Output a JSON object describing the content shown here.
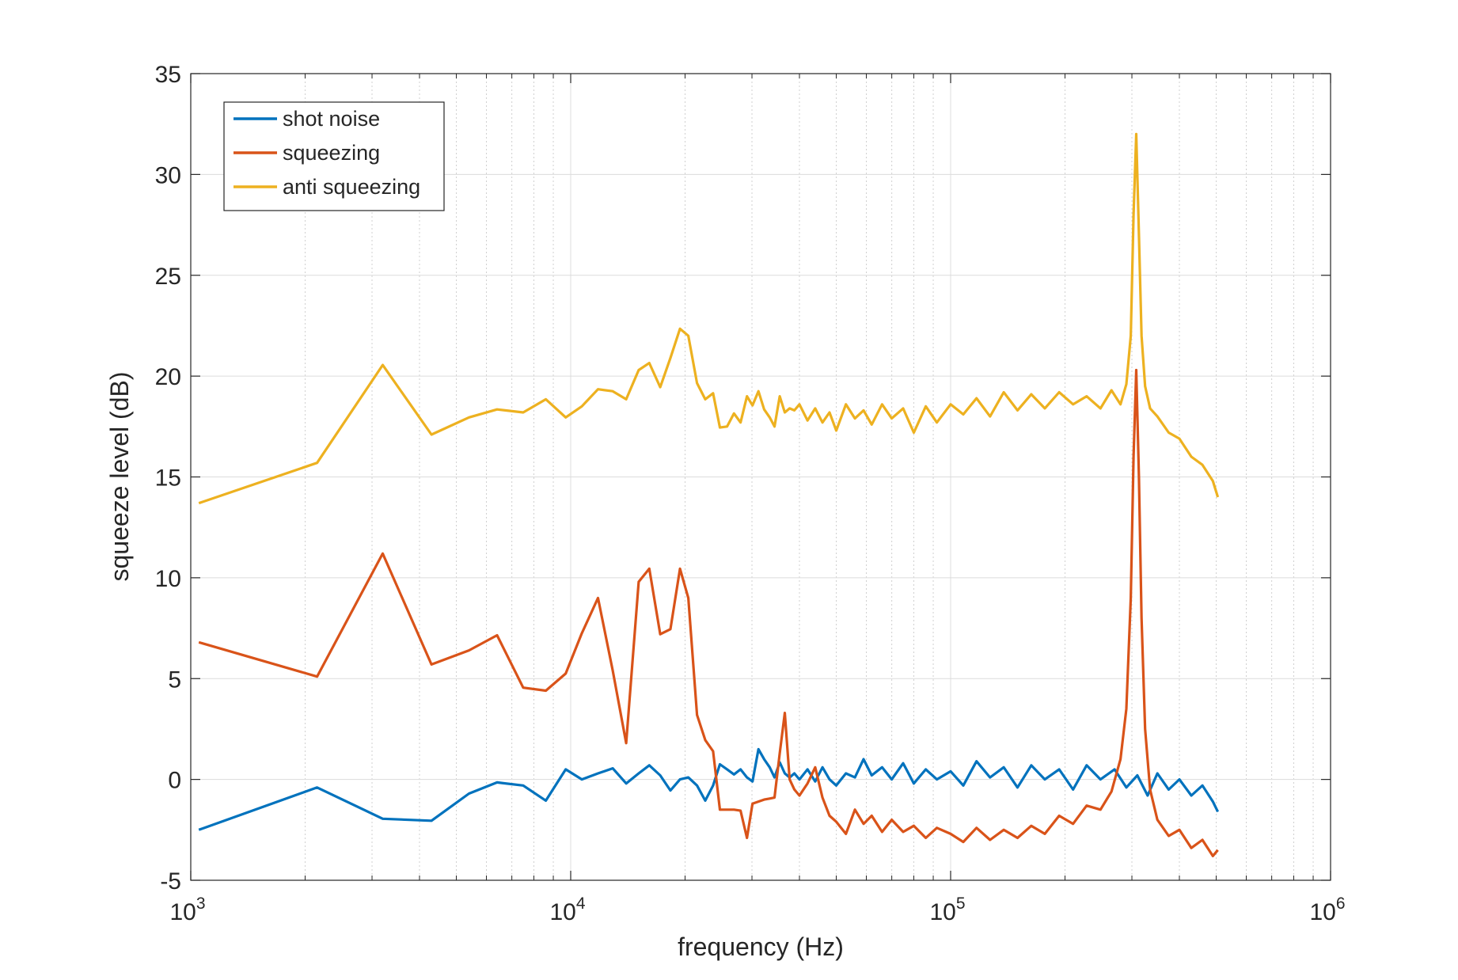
{
  "chart_data": {
    "type": "line",
    "title": "",
    "xlabel": "frequency (Hz)",
    "ylabel": "squeeze level (dB)",
    "xscale": "log",
    "xlim": [
      1000,
      1000000
    ],
    "ylim": [
      -5,
      35
    ],
    "grid": true,
    "legend": {
      "position": "top-left"
    },
    "xticks": [
      {
        "base": "10",
        "exp": "3",
        "value": 1000
      },
      {
        "base": "10",
        "exp": "4",
        "value": 10000
      },
      {
        "base": "10",
        "exp": "5",
        "value": 100000
      },
      {
        "base": "10",
        "exp": "6",
        "value": 1000000
      }
    ],
    "yticks": [
      "-5",
      "0",
      "5",
      "10",
      "15",
      "20",
      "25",
      "30",
      "35"
    ],
    "series": [
      {
        "name": "shot noise",
        "color": "#0072BD",
        "points": [
          [
            1050,
            -2.5
          ],
          [
            2150,
            -0.4
          ],
          [
            3200,
            -1.95
          ],
          [
            4300,
            -2.05
          ],
          [
            5400,
            -0.7
          ],
          [
            6400,
            -0.15
          ],
          [
            7500,
            -0.3
          ],
          [
            8600,
            -1.05
          ],
          [
            9700,
            0.5
          ],
          [
            10700,
            0.0
          ],
          [
            11800,
            0.3
          ],
          [
            12900,
            0.55
          ],
          [
            14000,
            -0.2
          ],
          [
            15100,
            0.3
          ],
          [
            16100,
            0.7
          ],
          [
            17200,
            0.2
          ],
          [
            18300,
            -0.55
          ],
          [
            19400,
            0.0
          ],
          [
            20400,
            0.1
          ],
          [
            21500,
            -0.3
          ],
          [
            22600,
            -1.05
          ],
          [
            23700,
            -0.3
          ],
          [
            24700,
            0.75
          ],
          [
            25800,
            0.5
          ],
          [
            26900,
            0.25
          ],
          [
            28000,
            0.5
          ],
          [
            29100,
            0.1
          ],
          [
            30100,
            -0.1
          ],
          [
            31200,
            1.5
          ],
          [
            32300,
            1.0
          ],
          [
            33400,
            0.6
          ],
          [
            34400,
            0.1
          ],
          [
            35500,
            0.85
          ],
          [
            36600,
            0.3
          ],
          [
            37700,
            0.1
          ],
          [
            38800,
            0.3
          ],
          [
            40000,
            0.0
          ],
          [
            42000,
            0.5
          ],
          [
            44000,
            -0.1
          ],
          [
            46000,
            0.6
          ],
          [
            48000,
            0.0
          ],
          [
            50000,
            -0.3
          ],
          [
            53000,
            0.3
          ],
          [
            56000,
            0.1
          ],
          [
            59000,
            1.0
          ],
          [
            62000,
            0.2
          ],
          [
            66000,
            0.6
          ],
          [
            70000,
            0.0
          ],
          [
            75000,
            0.8
          ],
          [
            80000,
            -0.2
          ],
          [
            86000,
            0.5
          ],
          [
            92000,
            0.0
          ],
          [
            100000,
            0.4
          ],
          [
            108000,
            -0.3
          ],
          [
            117000,
            0.9
          ],
          [
            127000,
            0.1
          ],
          [
            138000,
            0.6
          ],
          [
            150000,
            -0.4
          ],
          [
            163000,
            0.7
          ],
          [
            177000,
            0.0
          ],
          [
            193000,
            0.5
          ],
          [
            210000,
            -0.5
          ],
          [
            228000,
            0.7
          ],
          [
            248000,
            0.0
          ],
          [
            270000,
            0.5
          ],
          [
            290000,
            -0.4
          ],
          [
            310000,
            0.2
          ],
          [
            330000,
            -0.8
          ],
          [
            350000,
            0.3
          ],
          [
            375000,
            -0.5
          ],
          [
            400000,
            0.0
          ],
          [
            430000,
            -0.8
          ],
          [
            460000,
            -0.3
          ],
          [
            490000,
            -1.1
          ],
          [
            505000,
            -1.6
          ]
        ]
      },
      {
        "name": "squeezing",
        "color": "#D95319",
        "points": [
          [
            1050,
            6.8
          ],
          [
            2150,
            5.1
          ],
          [
            3200,
            11.2
          ],
          [
            4300,
            5.7
          ],
          [
            5400,
            6.4
          ],
          [
            6400,
            7.15
          ],
          [
            7500,
            4.55
          ],
          [
            8600,
            4.4
          ],
          [
            9700,
            5.25
          ],
          [
            10700,
            7.25
          ],
          [
            11800,
            9.0
          ],
          [
            12900,
            5.4
          ],
          [
            14000,
            1.8
          ],
          [
            15100,
            9.8
          ],
          [
            16100,
            10.45
          ],
          [
            17200,
            7.2
          ],
          [
            18300,
            7.45
          ],
          [
            19400,
            10.45
          ],
          [
            20400,
            9.0
          ],
          [
            21500,
            3.2
          ],
          [
            22600,
            1.95
          ],
          [
            23700,
            1.4
          ],
          [
            24700,
            -1.5
          ],
          [
            25800,
            -1.5
          ],
          [
            26900,
            -1.5
          ],
          [
            28000,
            -1.55
          ],
          [
            29100,
            -2.9
          ],
          [
            30100,
            -1.2
          ],
          [
            31200,
            -1.1
          ],
          [
            32300,
            -1.0
          ],
          [
            33400,
            -0.95
          ],
          [
            34400,
            -0.9
          ],
          [
            35500,
            1.3
          ],
          [
            36600,
            3.3
          ],
          [
            37700,
            0.0
          ],
          [
            38800,
            -0.5
          ],
          [
            40000,
            -0.8
          ],
          [
            42000,
            -0.2
          ],
          [
            44000,
            0.6
          ],
          [
            46000,
            -0.9
          ],
          [
            48000,
            -1.8
          ],
          [
            50000,
            -2.1
          ],
          [
            53000,
            -2.7
          ],
          [
            56000,
            -1.5
          ],
          [
            59000,
            -2.2
          ],
          [
            62000,
            -1.8
          ],
          [
            66000,
            -2.6
          ],
          [
            70000,
            -2.0
          ],
          [
            75000,
            -2.6
          ],
          [
            80000,
            -2.3
          ],
          [
            86000,
            -2.9
          ],
          [
            92000,
            -2.4
          ],
          [
            100000,
            -2.7
          ],
          [
            108000,
            -3.1
          ],
          [
            117000,
            -2.4
          ],
          [
            127000,
            -3.0
          ],
          [
            138000,
            -2.5
          ],
          [
            150000,
            -2.9
          ],
          [
            163000,
            -2.3
          ],
          [
            177000,
            -2.7
          ],
          [
            193000,
            -1.8
          ],
          [
            210000,
            -2.2
          ],
          [
            228000,
            -1.3
          ],
          [
            248000,
            -1.5
          ],
          [
            265000,
            -0.6
          ],
          [
            280000,
            1.0
          ],
          [
            290000,
            3.5
          ],
          [
            298000,
            9.0
          ],
          [
            303000,
            16.0
          ],
          [
            308000,
            20.3
          ],
          [
            313000,
            15.0
          ],
          [
            318000,
            8.0
          ],
          [
            325000,
            2.5
          ],
          [
            335000,
            -0.5
          ],
          [
            350000,
            -2.0
          ],
          [
            375000,
            -2.8
          ],
          [
            400000,
            -2.5
          ],
          [
            430000,
            -3.4
          ],
          [
            460000,
            -3.0
          ],
          [
            490000,
            -3.8
          ],
          [
            505000,
            -3.5
          ]
        ]
      },
      {
        "name": "anti squeezing",
        "color": "#EDB120",
        "points": [
          [
            1050,
            13.7
          ],
          [
            2150,
            15.7
          ],
          [
            3200,
            20.55
          ],
          [
            4300,
            17.1
          ],
          [
            5400,
            17.95
          ],
          [
            6400,
            18.35
          ],
          [
            7500,
            18.2
          ],
          [
            8600,
            18.85
          ],
          [
            9700,
            17.95
          ],
          [
            10700,
            18.5
          ],
          [
            11800,
            19.35
          ],
          [
            12900,
            19.25
          ],
          [
            14000,
            18.85
          ],
          [
            15100,
            20.3
          ],
          [
            16100,
            20.65
          ],
          [
            17200,
            19.45
          ],
          [
            18300,
            20.9
          ],
          [
            19400,
            22.35
          ],
          [
            20400,
            22.0
          ],
          [
            21500,
            19.65
          ],
          [
            22600,
            18.85
          ],
          [
            23700,
            19.15
          ],
          [
            24700,
            17.45
          ],
          [
            25800,
            17.5
          ],
          [
            26900,
            18.15
          ],
          [
            28000,
            17.7
          ],
          [
            29100,
            19.0
          ],
          [
            30100,
            18.55
          ],
          [
            31200,
            19.25
          ],
          [
            32300,
            18.35
          ],
          [
            33400,
            17.95
          ],
          [
            34400,
            17.5
          ],
          [
            35500,
            19.0
          ],
          [
            36600,
            18.2
          ],
          [
            37700,
            18.4
          ],
          [
            38800,
            18.3
          ],
          [
            40000,
            18.6
          ],
          [
            42000,
            17.8
          ],
          [
            44000,
            18.4
          ],
          [
            46000,
            17.7
          ],
          [
            48000,
            18.2
          ],
          [
            50000,
            17.3
          ],
          [
            53000,
            18.6
          ],
          [
            56000,
            17.9
          ],
          [
            59000,
            18.3
          ],
          [
            62000,
            17.6
          ],
          [
            66000,
            18.6
          ],
          [
            70000,
            17.9
          ],
          [
            75000,
            18.4
          ],
          [
            80000,
            17.2
          ],
          [
            86000,
            18.5
          ],
          [
            92000,
            17.7
          ],
          [
            100000,
            18.6
          ],
          [
            108000,
            18.1
          ],
          [
            117000,
            18.9
          ],
          [
            127000,
            18.0
          ],
          [
            138000,
            19.2
          ],
          [
            150000,
            18.3
          ],
          [
            163000,
            19.1
          ],
          [
            177000,
            18.4
          ],
          [
            193000,
            19.2
          ],
          [
            210000,
            18.6
          ],
          [
            228000,
            19.0
          ],
          [
            248000,
            18.4
          ],
          [
            265000,
            19.3
          ],
          [
            280000,
            18.6
          ],
          [
            290000,
            19.6
          ],
          [
            298000,
            22.0
          ],
          [
            303000,
            28.0
          ],
          [
            308000,
            32.0
          ],
          [
            313000,
            27.0
          ],
          [
            318000,
            22.0
          ],
          [
            325000,
            19.5
          ],
          [
            335000,
            18.4
          ],
          [
            350000,
            18.0
          ],
          [
            375000,
            17.2
          ],
          [
            400000,
            16.9
          ],
          [
            430000,
            16.0
          ],
          [
            460000,
            15.6
          ],
          [
            490000,
            14.8
          ],
          [
            505000,
            14.0
          ]
        ]
      }
    ]
  }
}
